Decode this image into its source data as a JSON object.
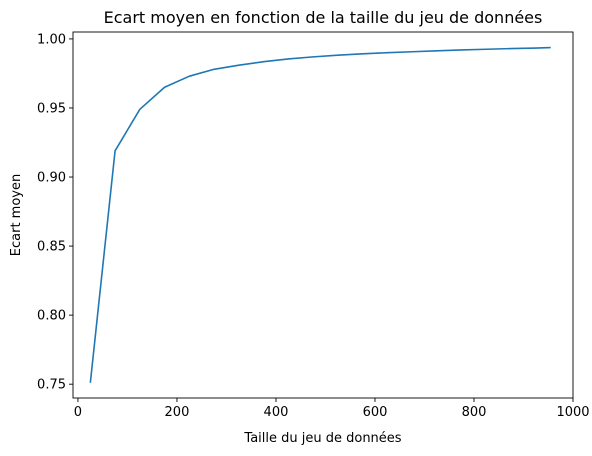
{
  "chart_data": {
    "type": "line",
    "title": "Ecart moyen en fonction de la taille du jeu de données",
    "xlabel": "Taille du jeu de données",
    "ylabel": "Ecart moyen",
    "xlim": [
      -10,
      1000
    ],
    "ylim": [
      0.74,
      1.005
    ],
    "xticks": [
      0,
      200,
      400,
      600,
      800,
      1000
    ],
    "yticks": [
      0.75,
      0.8,
      0.85,
      0.9,
      0.95,
      1.0
    ],
    "xtick_labels": [
      "0",
      "200",
      "400",
      "600",
      "800",
      "1000"
    ],
    "ytick_labels": [
      "0.75",
      "0.80",
      "0.85",
      "0.90",
      "0.95",
      "1.00"
    ],
    "grid": false,
    "series": [
      {
        "color": "#1f77b4",
        "x": [
          25,
          75,
          125,
          175,
          225,
          275,
          325,
          375,
          425,
          475,
          525,
          575,
          625,
          675,
          725,
          775,
          825,
          875,
          925,
          955
        ],
        "y": [
          0.751,
          0.919,
          0.949,
          0.965,
          0.973,
          0.978,
          0.981,
          0.9835,
          0.9855,
          0.987,
          0.9882,
          0.9892,
          0.99,
          0.9907,
          0.9914,
          0.992,
          0.9925,
          0.993,
          0.9934,
          0.9937
        ]
      }
    ]
  }
}
